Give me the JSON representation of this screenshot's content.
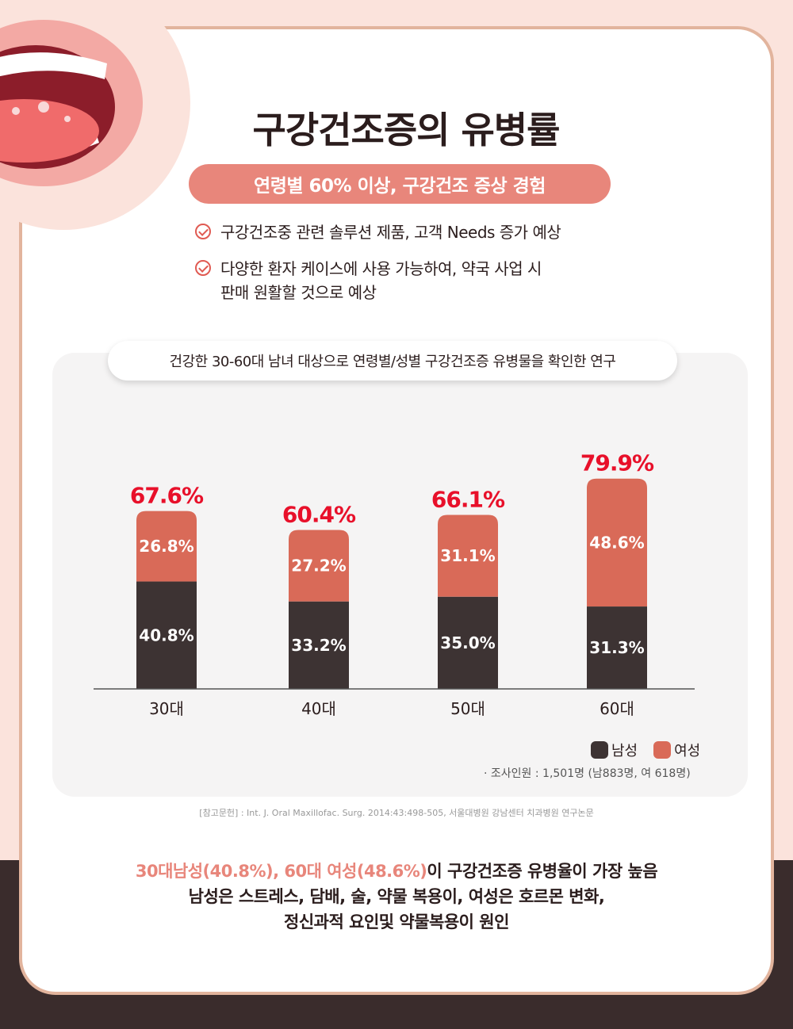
{
  "header": {
    "title": "구강건조증의 유병률",
    "subtitle": "연령별 60% 이상, 구강건조 증상 경험"
  },
  "bullets": [
    "구강건조중 관련 솔루션 제품, 고객 Needs 증가 예상",
    "다양한 환자 케이스에 사용 가능하여, 약국 사업 시",
    "판매 원활할 것으로 예상"
  ],
  "study_label": "건강한 30-60대 남녀 대상으로 연령별/성별 구강건조증 유병물을 확인한 연구",
  "chart_data": {
    "type": "bar",
    "stacked": true,
    "categories": [
      "30대",
      "40대",
      "50대",
      "60대"
    ],
    "series": [
      {
        "name": "남성",
        "values": [
          40.8,
          33.2,
          35.0,
          31.3
        ],
        "color": "#3d3333"
      },
      {
        "name": "여성",
        "values": [
          26.8,
          27.2,
          31.1,
          48.6
        ],
        "color": "#d96a58"
      }
    ],
    "totals": [
      67.6,
      60.4,
      66.1,
      79.9
    ],
    "value_labels": {
      "남성": [
        "40.8%",
        "33.2%",
        "35.0%",
        "31.3%"
      ],
      "여성": [
        "26.8%",
        "27.2%",
        "31.1%",
        "48.6%"
      ],
      "totals": [
        "67.6%",
        "60.4%",
        "66.1%",
        "79.9%"
      ]
    },
    "total_label_color": "#e8102a",
    "ylim": [
      0,
      85
    ],
    "legend_position": "bottom-right"
  },
  "legend": {
    "male": "남성",
    "female": "여성"
  },
  "survey_note": "·  조사인원 : 1,501명 (남883명, 여 618명)",
  "reference": "[참고문헌] : Int. J. Oral Maxillofac. Surg. 2014:43:498-505, 서울대병원 강남센터 치과병원 연구논문",
  "conclusion": {
    "highlight": "30대남성(40.8%), 60대 여성(48.6%)",
    "line1_rest": "이 구강건조증 유병율이 가장 높음",
    "line2": "남성은 스트레스, 담배, 술, 약물 복용이, 여성은 호르몬 변화,",
    "line3": "정신과적 요인및 약물복용이 원인"
  },
  "colors": {
    "accent": "#e8867b",
    "male": "#3d3333",
    "female": "#d96a58",
    "total": "#e8102a"
  }
}
